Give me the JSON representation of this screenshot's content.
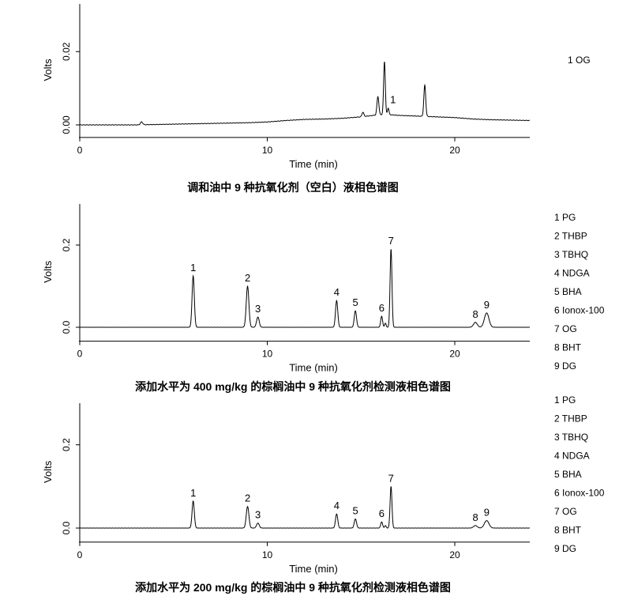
{
  "chart_data": [
    {
      "type": "line",
      "caption": "调和油中 9 种抗氧化剂（空白）液相色谱图",
      "xlabel": "Time (min)",
      "ylabel": "Volts",
      "xlim": [
        0,
        24
      ],
      "ylim": [
        -0.003,
        0.033
      ],
      "x_ticks": [
        "0",
        "10",
        "20"
      ],
      "y_ticks": [
        "0.00",
        "0.02"
      ],
      "x_tick_values": [
        0,
        10,
        20
      ],
      "y_tick_values": [
        0,
        0.02
      ],
      "legend": [
        "1 OG"
      ],
      "baseline": [
        [
          0,
          0.0
        ],
        [
          3,
          0.0
        ],
        [
          6,
          0.0003
        ],
        [
          9,
          0.0006
        ],
        [
          10,
          0.0008
        ],
        [
          11,
          0.0012
        ],
        [
          12,
          0.0015
        ],
        [
          13,
          0.0016
        ],
        [
          14,
          0.0018
        ],
        [
          15,
          0.0022
        ],
        [
          16,
          0.0028
        ],
        [
          16.5,
          0.0028
        ],
        [
          17,
          0.0026
        ],
        [
          18,
          0.0024
        ],
        [
          19,
          0.0022
        ],
        [
          20,
          0.002
        ],
        [
          21,
          0.0016
        ],
        [
          22,
          0.0014
        ],
        [
          24,
          0.0012
        ]
      ],
      "peaks": [
        {
          "t": 3.3,
          "h": 0.0008,
          "w": 0.06,
          "label": ""
        },
        {
          "t": 15.1,
          "h": 0.0012,
          "w": 0.05,
          "label": ""
        },
        {
          "t": 15.9,
          "h": 0.005,
          "w": 0.05,
          "label": ""
        },
        {
          "t": 16.25,
          "h": 0.0145,
          "w": 0.045,
          "label": ""
        },
        {
          "t": 16.45,
          "h": 0.0018,
          "w": 0.04,
          "label": "1"
        },
        {
          "t": 18.4,
          "h": 0.0085,
          "w": 0.05,
          "label": ""
        }
      ]
    },
    {
      "type": "line",
      "caption": "添加水平为 400 mg/kg 的棕榈油中 9 种抗氧化剂检测液相色谱图",
      "xlabel": "Time (min)",
      "ylabel": "Volts",
      "xlim": [
        0,
        24
      ],
      "ylim": [
        -0.03,
        0.3
      ],
      "x_ticks": [
        "0",
        "10",
        "20"
      ],
      "y_ticks": [
        "0.0",
        "0.2"
      ],
      "x_tick_values": [
        0,
        10,
        20
      ],
      "y_tick_values": [
        0,
        0.2
      ],
      "legend": [
        "1 PG",
        "2 THBP",
        "3 TBHQ",
        "4 NDGA",
        "5 BHA",
        "6 Ionox-100",
        "7 OG",
        "8 BHT",
        "9 DG"
      ],
      "baseline": [
        [
          0,
          0.0
        ],
        [
          24,
          0.0
        ]
      ],
      "peaks": [
        {
          "t": 6.05,
          "h": 0.125,
          "w": 0.06,
          "label": "1"
        },
        {
          "t": 8.95,
          "h": 0.1,
          "w": 0.07,
          "label": "2"
        },
        {
          "t": 9.5,
          "h": 0.025,
          "w": 0.07,
          "label": "3"
        },
        {
          "t": 13.7,
          "h": 0.065,
          "w": 0.06,
          "label": "4"
        },
        {
          "t": 14.7,
          "h": 0.04,
          "w": 0.06,
          "label": "5"
        },
        {
          "t": 16.1,
          "h": 0.027,
          "w": 0.05,
          "label": "6"
        },
        {
          "t": 16.3,
          "h": 0.01,
          "w": 0.04,
          "label": ""
        },
        {
          "t": 16.6,
          "h": 0.19,
          "w": 0.05,
          "label": "7"
        },
        {
          "t": 21.1,
          "h": 0.012,
          "w": 0.1,
          "label": "8"
        },
        {
          "t": 21.7,
          "h": 0.035,
          "w": 0.12,
          "label": "9"
        }
      ]
    },
    {
      "type": "line",
      "caption": "添加水平为 200 mg/kg 的棕榈油中 9 种抗氧化剂检测液相色谱图",
      "xlabel": "Time (min)",
      "ylabel": "Volts",
      "xlim": [
        0,
        24
      ],
      "ylim": [
        -0.03,
        0.3
      ],
      "x_ticks": [
        "0",
        "10",
        "20"
      ],
      "y_ticks": [
        "0.0",
        "0.2"
      ],
      "x_tick_values": [
        0,
        10,
        20
      ],
      "y_tick_values": [
        0,
        0.2
      ],
      "legend": [
        "1 PG",
        "2 THBP",
        "3 TBHQ",
        "4 NDGA",
        "5 BHA",
        "6 Ionox-100",
        "7 OG",
        "8 BHT",
        "9 DG"
      ],
      "baseline": [
        [
          0,
          0.0
        ],
        [
          24,
          0.0
        ]
      ],
      "peaks": [
        {
          "t": 6.05,
          "h": 0.065,
          "w": 0.06,
          "label": "1"
        },
        {
          "t": 8.95,
          "h": 0.052,
          "w": 0.07,
          "label": "2"
        },
        {
          "t": 9.5,
          "h": 0.012,
          "w": 0.07,
          "label": "3"
        },
        {
          "t": 13.7,
          "h": 0.034,
          "w": 0.06,
          "label": "4"
        },
        {
          "t": 14.7,
          "h": 0.022,
          "w": 0.06,
          "label": "5"
        },
        {
          "t": 16.1,
          "h": 0.015,
          "w": 0.05,
          "label": "6"
        },
        {
          "t": 16.3,
          "h": 0.006,
          "w": 0.04,
          "label": ""
        },
        {
          "t": 16.6,
          "h": 0.1,
          "w": 0.05,
          "label": "7"
        },
        {
          "t": 21.1,
          "h": 0.006,
          "w": 0.1,
          "label": "8"
        },
        {
          "t": 21.7,
          "h": 0.018,
          "w": 0.12,
          "label": "9"
        }
      ]
    }
  ]
}
